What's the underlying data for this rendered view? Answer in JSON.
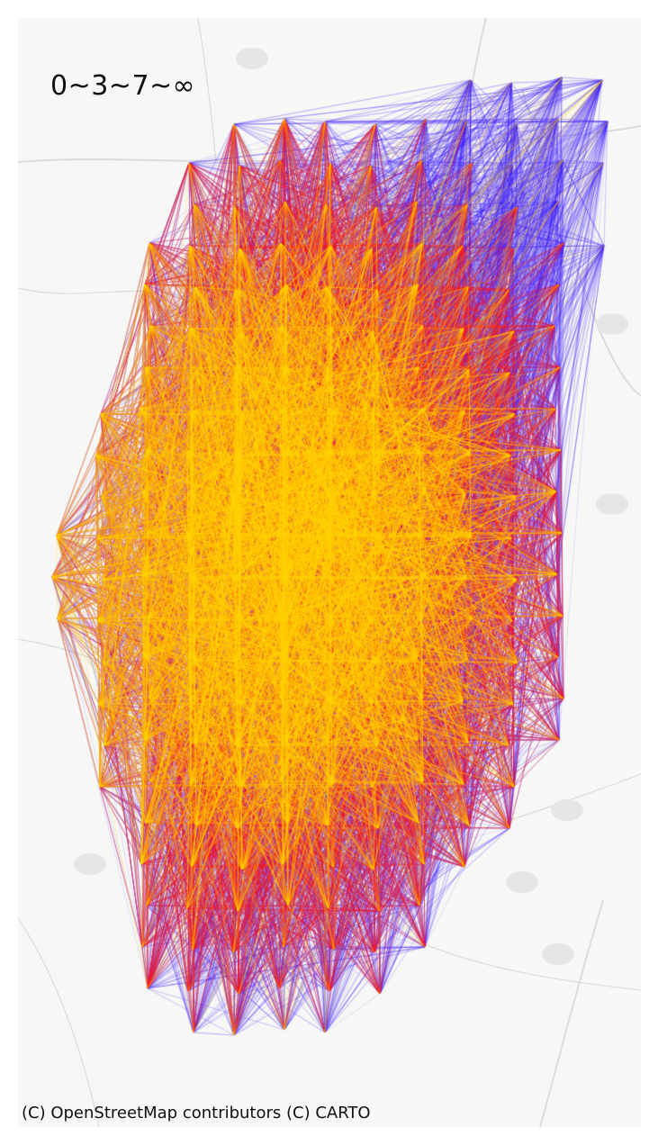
{
  "legend": {
    "class_breaks": "0~3~7~∞"
  },
  "attribution": "(C) OpenStreetMap contributors (C) CARTO",
  "colors": {
    "background": "#f7f7f5",
    "road": "#dcdcdc",
    "town": "#e6e6e6",
    "flow_low": "#3a1fff",
    "flow_mid": "#ff1a1a",
    "flow_high": "#ffd400"
  }
}
